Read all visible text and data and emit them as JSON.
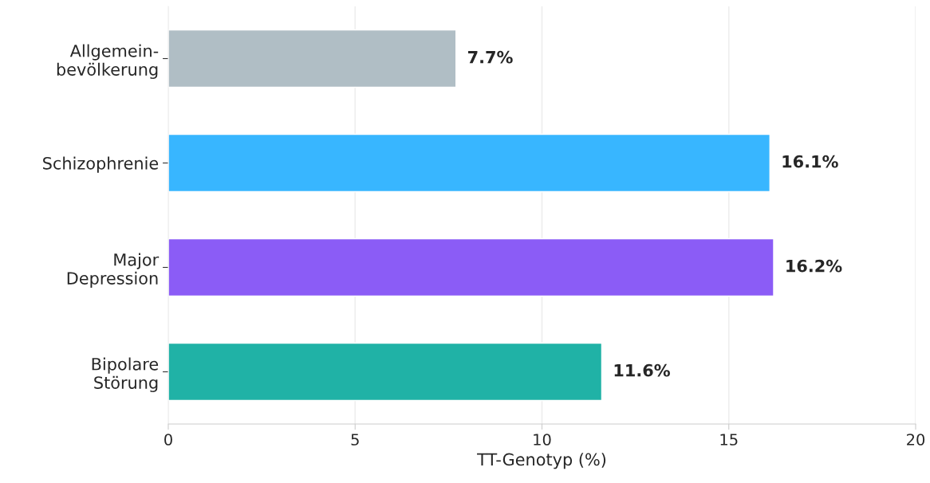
{
  "chart_data": {
    "type": "bar",
    "orientation": "horizontal",
    "xlabel": "TT-Genotyp (%)",
    "categories": [
      "Allgemein-\nbevölkerung",
      "Schizophrenie",
      "Major\nDepression",
      "Bipolare\nStörung"
    ],
    "values": [
      7.7,
      16.1,
      16.2,
      11.6
    ],
    "colors": [
      "#b0bec5",
      "#38b6ff",
      "#8b5cf6",
      "#20b2a6"
    ],
    "value_labels": [
      "7.7%",
      "16.1%",
      "16.2%",
      "11.6%"
    ],
    "xlim": [
      0,
      20
    ],
    "xticks": [
      0,
      5,
      10,
      15,
      20
    ],
    "grid": "x"
  }
}
